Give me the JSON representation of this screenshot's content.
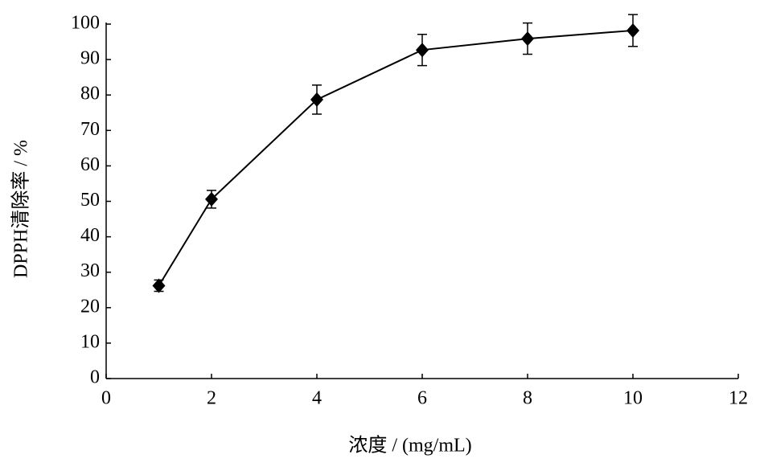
{
  "chart_data": {
    "type": "line",
    "x_label": "浓度 / (mg/mL)",
    "y_label": "DPPH清除率 / %",
    "x": [
      1,
      2,
      4,
      6,
      8,
      10
    ],
    "values": [
      26.2,
      50.6,
      78.7,
      92.7,
      95.9,
      98.2
    ],
    "errors": [
      1.6,
      2.5,
      4.1,
      4.4,
      4.4,
      4.5
    ],
    "color": "#000000",
    "xlim": [
      0,
      12
    ],
    "xticks": [
      0,
      2,
      4,
      6,
      8,
      10,
      12
    ],
    "ylim": [
      0,
      100
    ],
    "yticks": [
      0,
      10,
      20,
      30,
      40,
      50,
      60,
      70,
      80,
      90,
      100
    ],
    "grid": false
  }
}
